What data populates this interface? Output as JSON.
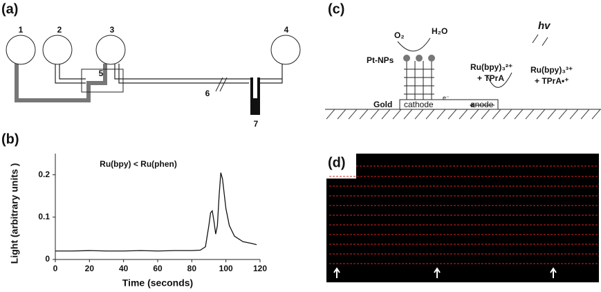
{
  "panels": {
    "a": {
      "label": "(a)",
      "numbers": [
        "1",
        "2",
        "3",
        "4",
        "5",
        "6",
        "7"
      ]
    },
    "b": {
      "label": "(b)"
    },
    "c": {
      "label": "(c)",
      "o2": "O₂",
      "h2o": "H₂O",
      "hv": "hv",
      "pt": "Pt-NPs",
      "ru2": "Ru(bpy)₃²⁺",
      "tpra": "+ TPrA",
      "ru3": "Ru(bpy)₃³⁺",
      "tpra_rad": "+ TPrA•⁺",
      "gold": "Gold",
      "cathode": "cathode",
      "anode": "anode",
      "electron": "e⁻"
    },
    "d": {
      "label": "(d)"
    }
  },
  "chart_data": {
    "type": "line",
    "title": "Ru(bpy) < Ru(phen)",
    "x_label": "Time (seconds)",
    "y_label": "Light (arbitrary units )",
    "x": [
      0,
      10,
      20,
      30,
      40,
      50,
      60,
      70,
      80,
      85,
      88,
      90,
      91,
      92,
      93,
      94,
      95,
      96,
      97,
      98,
      100,
      102,
      105,
      110,
      115,
      118
    ],
    "values": [
      0.02,
      0.02,
      0.021,
      0.02,
      0.02,
      0.021,
      0.02,
      0.021,
      0.021,
      0.022,
      0.03,
      0.08,
      0.11,
      0.115,
      0.09,
      0.06,
      0.08,
      0.15,
      0.205,
      0.19,
      0.12,
      0.08,
      0.055,
      0.042,
      0.038,
      0.035
    ],
    "color": "#111111",
    "xlim": [
      0,
      120
    ],
    "ylim": [
      0,
      0.25
    ],
    "xticks": [
      0,
      20,
      40,
      60,
      80,
      100,
      120
    ],
    "yticks": [
      0,
      0.1,
      0.2
    ]
  }
}
